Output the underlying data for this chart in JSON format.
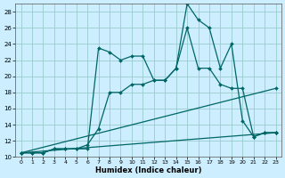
{
  "xlabel": "Humidex (Indice chaleur)",
  "bg_color": "#cceeff",
  "grid_color": "#99cccc",
  "line_color": "#006666",
  "xlim": [
    -0.5,
    23.5
  ],
  "ylim": [
    10,
    29
  ],
  "xticks": [
    0,
    1,
    2,
    3,
    4,
    5,
    6,
    7,
    8,
    9,
    10,
    11,
    12,
    13,
    14,
    15,
    16,
    17,
    18,
    19,
    20,
    21,
    22,
    23
  ],
  "yticks": [
    10,
    12,
    14,
    16,
    18,
    20,
    22,
    24,
    26,
    28
  ],
  "series": [
    {
      "x": [
        0,
        1,
        2,
        3,
        4,
        5,
        6,
        7,
        8,
        9,
        10,
        11,
        12,
        13,
        14,
        15,
        16,
        17,
        18,
        19,
        20,
        21,
        22,
        23
      ],
      "y": [
        10.5,
        10.5,
        10.5,
        11,
        11,
        11,
        11,
        23.5,
        23.0,
        22.0,
        22.5,
        22.5,
        19.5,
        19.5,
        21.0,
        29.0,
        27.0,
        26.0,
        21.0,
        24.0,
        14.5,
        12.5,
        13.0,
        13.0
      ]
    },
    {
      "x": [
        0,
        1,
        2,
        3,
        4,
        5,
        6,
        7,
        8,
        9,
        10,
        11,
        12,
        13,
        14,
        15,
        16,
        17,
        18,
        19,
        20,
        21,
        22,
        23
      ],
      "y": [
        10.5,
        10.5,
        10.5,
        11,
        11,
        11,
        11.5,
        13.5,
        18.0,
        18.0,
        19.0,
        19.0,
        19.5,
        19.5,
        21.0,
        26.0,
        21.0,
        21.0,
        19.0,
        18.5,
        18.5,
        12.5,
        13.0,
        13.0
      ]
    },
    {
      "x": [
        0,
        23
      ],
      "y": [
        10.5,
        18.5
      ]
    },
    {
      "x": [
        0,
        23
      ],
      "y": [
        10.5,
        13.0
      ]
    }
  ]
}
